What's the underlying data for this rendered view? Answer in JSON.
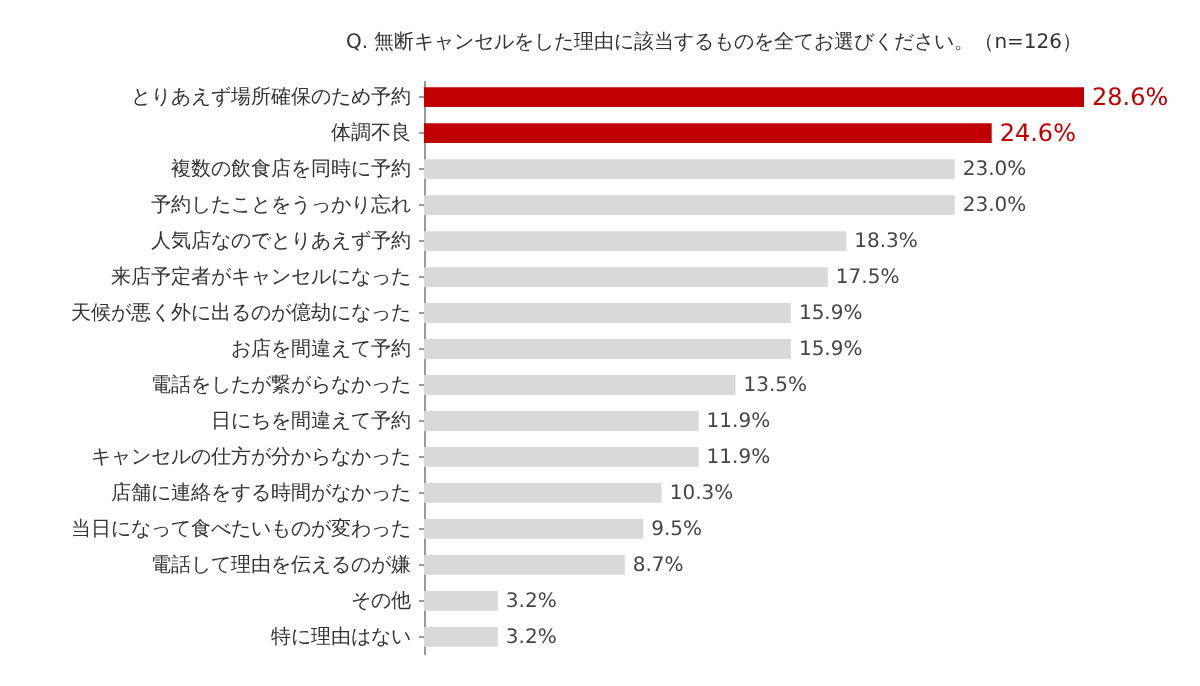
{
  "chart_data": {
    "type": "bar",
    "orientation": "horizontal",
    "title": "Q. 無断キャンセルをした理由に該当するものを全てお選びください。（n=126）",
    "categories": [
      "とりあえず場所確保のため予約",
      "体調不良",
      "複数の飲食店を同時に予約",
      "予約したことをうっかり忘れ",
      "人気店なのでとりあえず予約",
      "来店予定者がキャンセルになった",
      "天候が悪く外に出るのが億劫になった",
      "お店を間違えて予約",
      "電話をしたが繋がらなかった",
      "日にちを間違えて予約",
      "キャンセルの仕方が分からなかった",
      "店舗に連絡をする時間がなかった",
      "当日になって食べたいものが変わった",
      "電話して理由を伝えるのが嫌",
      "その他",
      "特に理由はない"
    ],
    "values": [
      28.6,
      24.6,
      23.0,
      23.0,
      18.3,
      17.5,
      15.9,
      15.9,
      13.5,
      11.9,
      11.9,
      10.3,
      9.5,
      8.7,
      3.2,
      3.2
    ],
    "value_labels": [
      "28.6%",
      "24.6%",
      "23.0%",
      "23.0%",
      "18.3%",
      "17.5%",
      "15.9%",
      "15.9%",
      "13.5%",
      "11.9%",
      "11.9%",
      "10.3%",
      "9.5%",
      "8.7%",
      "3.2%",
      "3.2%"
    ],
    "colors": [
      "#c00000",
      "#c00000",
      "#d9d9d9",
      "#d9d9d9",
      "#d9d9d9",
      "#d9d9d9",
      "#d9d9d9",
      "#d9d9d9",
      "#d9d9d9",
      "#d9d9d9",
      "#d9d9d9",
      "#d9d9d9",
      "#d9d9d9",
      "#d9d9d9",
      "#d9d9d9",
      "#d9d9d9"
    ]
  }
}
